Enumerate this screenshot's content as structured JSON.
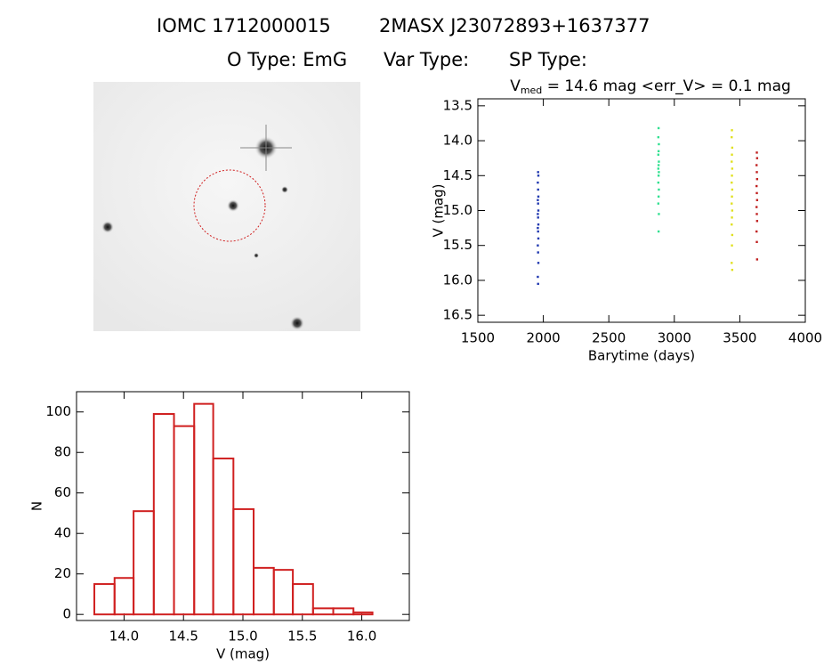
{
  "header": {
    "title_left": "IOMC 1712000015",
    "title_right": "2MASX J23072893+1637377",
    "o_type": "O Type: EmG",
    "var_type": "Var Type:",
    "sp_type": "SP Type:"
  },
  "chart_data": [
    {
      "type": "scatter",
      "title": "V",
      "title_subscript": "med",
      "title_rest": " = 14.6 mag <err_V> = 0.1 mag",
      "x_label": "Barytime (days)",
      "y_label": "V (mag)",
      "xlim": [
        1500,
        4000
      ],
      "xticks": [
        1500,
        2000,
        2500,
        3000,
        3500,
        4000
      ],
      "ylim": [
        16.6,
        13.4
      ],
      "yticks": [
        13.5,
        {
          "value": 14,
          "label": "14.0"
        },
        14.5,
        {
          "value": 15,
          "label": "15.0"
        },
        15.5,
        {
          "value": 16,
          "label": "16.0"
        },
        16.5
      ],
      "series": [
        {
          "color": "#2038b0",
          "x": [
            1960,
            1962,
            1958,
            1960,
            1962,
            1958,
            1960,
            1962,
            1958,
            1960,
            1962,
            1958,
            1960,
            1962,
            1958,
            1960,
            1962,
            1958,
            1960
          ],
          "values": [
            14.45,
            14.5,
            14.6,
            14.7,
            14.8,
            14.85,
            14.9,
            15.0,
            15.05,
            15.1,
            15.2,
            15.25,
            15.3,
            15.4,
            15.5,
            15.6,
            15.75,
            15.95,
            16.05
          ]
        },
        {
          "color": "#30e090",
          "x": [
            2880,
            2878,
            2882,
            2880,
            2878,
            2882,
            2880,
            2878,
            2882,
            2880,
            2878,
            2882,
            2880,
            2878,
            2882,
            2880
          ],
          "values": [
            13.82,
            13.95,
            14.05,
            14.15,
            14.2,
            14.3,
            14.35,
            14.4,
            14.45,
            14.5,
            14.6,
            14.7,
            14.8,
            14.9,
            15.05,
            15.3
          ]
        },
        {
          "color": "#e0e020",
          "x": [
            3440,
            3438,
            3442,
            3440,
            3438,
            3442,
            3440,
            3438,
            3442,
            3440,
            3438,
            3442,
            3440,
            3438,
            3442,
            3440,
            3438,
            3442
          ],
          "values": [
            13.85,
            13.95,
            14.1,
            14.2,
            14.3,
            14.4,
            14.5,
            14.6,
            14.7,
            14.8,
            14.9,
            15.0,
            15.1,
            15.2,
            15.35,
            15.5,
            15.75,
            15.85
          ]
        },
        {
          "color": "#c02020",
          "x": [
            3630,
            3632,
            3628,
            3630,
            3632,
            3628,
            3630,
            3632,
            3628,
            3630,
            3632,
            3628,
            3630,
            3632
          ],
          "values": [
            14.17,
            14.25,
            14.35,
            14.45,
            14.55,
            14.65,
            14.75,
            14.85,
            14.95,
            15.05,
            15.15,
            15.3,
            15.45,
            15.7
          ]
        }
      ]
    },
    {
      "type": "histogram",
      "x_label": "V (mag)",
      "y_label": "N",
      "color": "#d02020",
      "bins": [
        13.75,
        13.92,
        14.08,
        14.25,
        14.42,
        14.59,
        14.75,
        14.92,
        15.09,
        15.26,
        15.42,
        15.59,
        15.76,
        15.93,
        16.09
      ],
      "values": [
        15,
        18,
        51,
        99,
        93,
        104,
        77,
        52,
        23,
        22,
        15,
        3,
        3,
        1
      ],
      "xlim": [
        13.6,
        16.4
      ],
      "xticks": [
        {
          "value": 14,
          "label": "14.0"
        },
        14.5,
        {
          "value": 15,
          "label": "15.0"
        },
        15.5,
        {
          "value": 16,
          "label": "16.0"
        }
      ],
      "ylim": [
        -3,
        110
      ],
      "yticks": [
        0,
        20,
        40,
        60,
        80,
        100
      ]
    }
  ]
}
